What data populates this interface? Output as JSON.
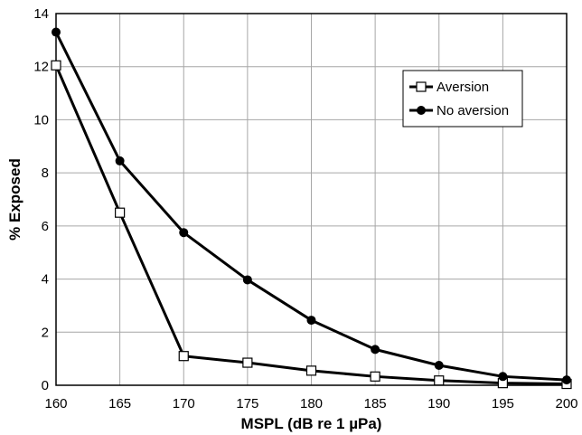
{
  "chart_data": {
    "type": "line",
    "title": "",
    "xlabel": "MSPL  (dB re 1 µPa)",
    "ylabel": "% Exposed",
    "x": [
      160,
      165,
      170,
      175,
      180,
      185,
      190,
      195,
      200
    ],
    "xlim": [
      160,
      200
    ],
    "xticks": [
      160,
      165,
      170,
      175,
      180,
      185,
      190,
      195,
      200
    ],
    "ylim": [
      0,
      14
    ],
    "yticks": [
      0,
      2,
      4,
      6,
      8,
      10,
      12,
      14
    ],
    "grid": true,
    "legend_position": "top-right",
    "series": [
      {
        "name": "Aversion",
        "marker": "open-square",
        "color": "#000000",
        "values": [
          12.05,
          6.5,
          1.1,
          0.85,
          0.55,
          0.33,
          0.18,
          0.08,
          0.05
        ]
      },
      {
        "name": "No aversion",
        "marker": "filled-circle",
        "color": "#000000",
        "values": [
          13.3,
          8.45,
          5.75,
          3.97,
          2.45,
          1.35,
          0.75,
          0.33,
          0.2
        ]
      }
    ]
  }
}
